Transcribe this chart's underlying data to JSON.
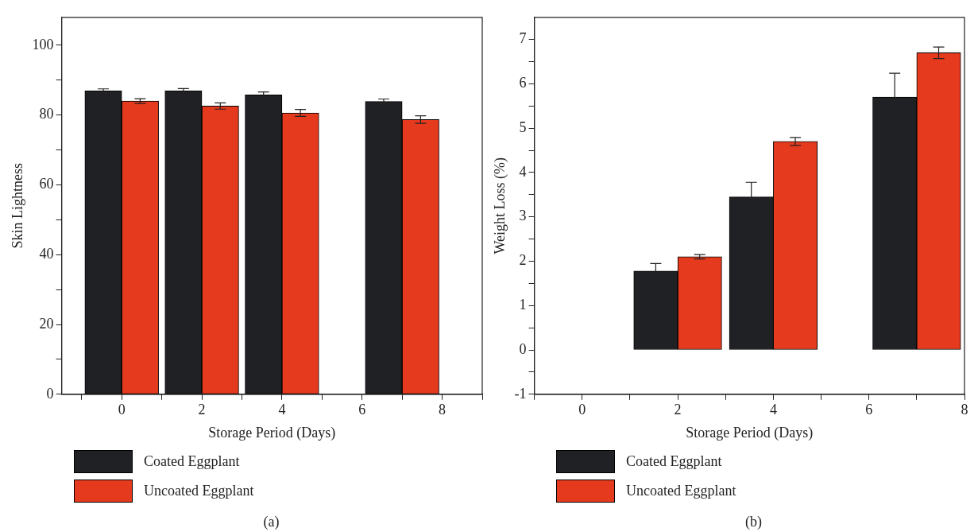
{
  "chart_data": [
    {
      "type": "bar",
      "x": [
        0,
        2,
        4,
        7
      ],
      "xlabel": "Storage Period (Days)",
      "ylabel": "Skin Lightness",
      "xlim": [
        -1.5,
        9
      ],
      "xticks": [
        {
          "value": -1,
          "label": null
        },
        0,
        {
          "value": 1,
          "label": null
        },
        2,
        {
          "value": 3,
          "label": null
        },
        4,
        {
          "value": 5,
          "label": null
        },
        6,
        {
          "value": 7,
          "label": null
        },
        8,
        {
          "value": 9,
          "label": null
        }
      ],
      "ylim": [
        0,
        108
      ],
      "yticks": [
        0,
        {
          "value": 10,
          "label": null
        },
        20,
        {
          "value": 30,
          "label": null
        },
        40,
        {
          "value": 50,
          "label": null
        },
        60,
        {
          "value": 70,
          "label": null
        },
        80,
        {
          "value": 90,
          "label": null
        },
        100
      ],
      "series": [
        {
          "name": "Coated Eggplant",
          "color": "#202124",
          "values": [
            87,
            87,
            85.8,
            83.9
          ],
          "errors": [
            0.5,
            0.6,
            0.8,
            0.7
          ]
        },
        {
          "name": "Uncoated Eggplant",
          "color": "#e53a1e",
          "values": [
            84,
            82.6,
            80.6,
            78.7
          ],
          "errors": [
            0.7,
            0.9,
            1,
            1.1
          ]
        }
      ],
      "legend": "bottom",
      "annotations": [
        "(a)"
      ]
    },
    {
      "type": "bar",
      "x": [
        0,
        2,
        4,
        7
      ],
      "xlabel": "Storage Period (Days)",
      "ylabel": "Weight Loss (%)",
      "xlim": [
        -1,
        8
      ],
      "xticks": [
        {
          "value": -1,
          "label": null
        },
        0,
        {
          "value": 1,
          "label": null
        },
        2,
        {
          "value": 3,
          "label": null
        },
        4,
        {
          "value": 5,
          "label": null
        },
        6,
        {
          "value": 7,
          "label": null
        },
        8
      ],
      "ylim": [
        -1,
        7.5
      ],
      "yticks": [
        -1,
        {
          "value": -0.5,
          "label": null
        },
        0,
        {
          "value": 0.5,
          "label": null
        },
        1,
        {
          "value": 1.5,
          "label": null
        },
        2,
        {
          "value": 2.5,
          "label": null
        },
        3,
        {
          "value": 3.5,
          "label": null
        },
        4,
        {
          "value": 4.5,
          "label": null
        },
        5,
        {
          "value": 5.5,
          "label": null
        },
        6,
        {
          "value": 6.5,
          "label": null
        },
        7
      ],
      "series": [
        {
          "name": "Coated Eggplant",
          "color": "#202124",
          "values": [
            0,
            1.78,
            3.45,
            5.7
          ],
          "errors": [
            null,
            0.17,
            0.33,
            0.54
          ]
        },
        {
          "name": "Uncoated Eggplant",
          "color": "#e53a1e",
          "values": [
            0,
            2.1,
            4.7,
            6.7
          ],
          "errors": [
            null,
            0.05,
            0.09,
            0.13
          ]
        }
      ],
      "legend": "bottom",
      "annotations": [
        "(b)"
      ]
    }
  ]
}
